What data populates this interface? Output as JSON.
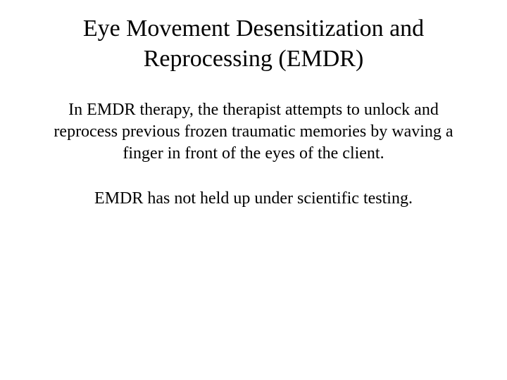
{
  "slide": {
    "title": "Eye Movement Desensitization and Reprocessing (EMDR)",
    "para1": "In EMDR therapy, the therapist attempts to unlock and reprocess previous frozen traumatic memories by waving a finger in front of the eyes of the client.",
    "para2": "EMDR has not held up under scientific testing.",
    "background_color": "#ffffff",
    "text_color": "#000000",
    "title_fontsize": 34,
    "body_fontsize": 24,
    "font_family": "Book Antiqua / Palatino serif"
  }
}
